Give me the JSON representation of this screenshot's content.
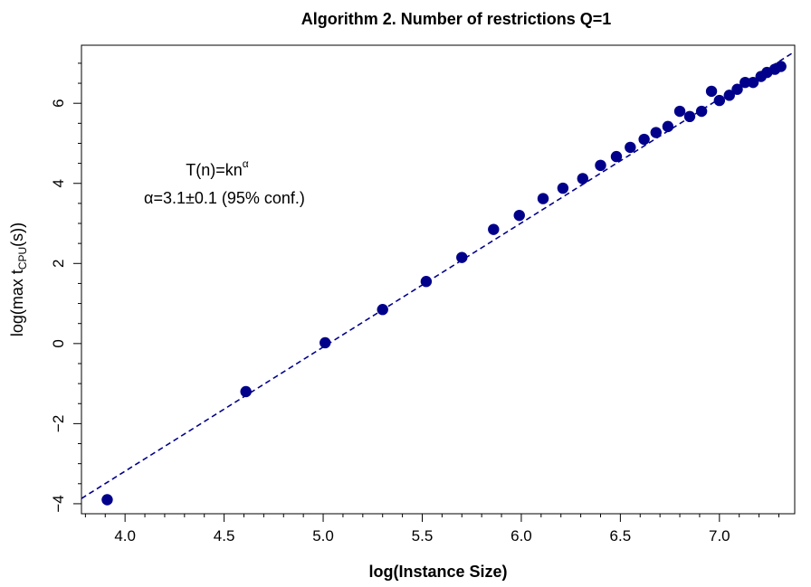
{
  "chart_data": {
    "type": "scatter",
    "title": "Algorithm 2. Number of restrictions Q=1",
    "xlabel": "log(Instance Size)",
    "ylabel": {
      "prefix": "log(max t",
      "subscript": "CPU",
      "suffix": "(s))"
    },
    "xlim": [
      3.78,
      7.38
    ],
    "ylim": [
      -4.25,
      7.45
    ],
    "xticks": [
      4.0,
      4.5,
      5.0,
      5.5,
      6.0,
      6.5,
      7.0
    ],
    "xtick_labels": [
      "4.0",
      "4.5",
      "5.0",
      "5.5",
      "6.0",
      "6.5",
      "7.0"
    ],
    "yticks": [
      -4,
      -2,
      0,
      2,
      4,
      6
    ],
    "ytick_labels": [
      "−4",
      "−2",
      "0",
      "2",
      "4",
      "6"
    ],
    "grid": false,
    "legend": "none",
    "colors": {
      "points": "#00008B",
      "fit_line": "#00008B"
    },
    "series": [
      {
        "x": [
          3.91,
          4.61,
          5.01,
          5.3,
          5.52,
          5.7,
          5.86,
          5.99,
          6.11,
          6.21,
          6.31,
          6.4,
          6.48,
          6.55,
          6.62,
          6.68,
          6.74,
          6.8,
          6.85,
          6.91,
          6.96,
          7.0,
          7.05,
          7.09,
          7.13,
          7.17,
          7.21,
          7.24,
          7.28,
          7.31
        ],
        "y": [
          -3.9,
          -1.2,
          0.02,
          0.85,
          1.55,
          2.15,
          2.85,
          3.2,
          3.62,
          3.88,
          4.12,
          4.45,
          4.67,
          4.9,
          5.1,
          5.27,
          5.42,
          5.8,
          5.67,
          5.8,
          6.3,
          6.07,
          6.2,
          6.35,
          6.52,
          6.52,
          6.67,
          6.77,
          6.85,
          6.92
        ]
      }
    ],
    "fit_line": {
      "style": "dashed",
      "x": [
        3.78,
        7.38
      ],
      "y": [
        -3.87,
        7.29
      ]
    },
    "annotations": {
      "formula": {
        "base": "T(n)=kn",
        "superscript": "α"
      },
      "alpha_text": "α=3.1±0.1 (95% conf.)"
    }
  }
}
